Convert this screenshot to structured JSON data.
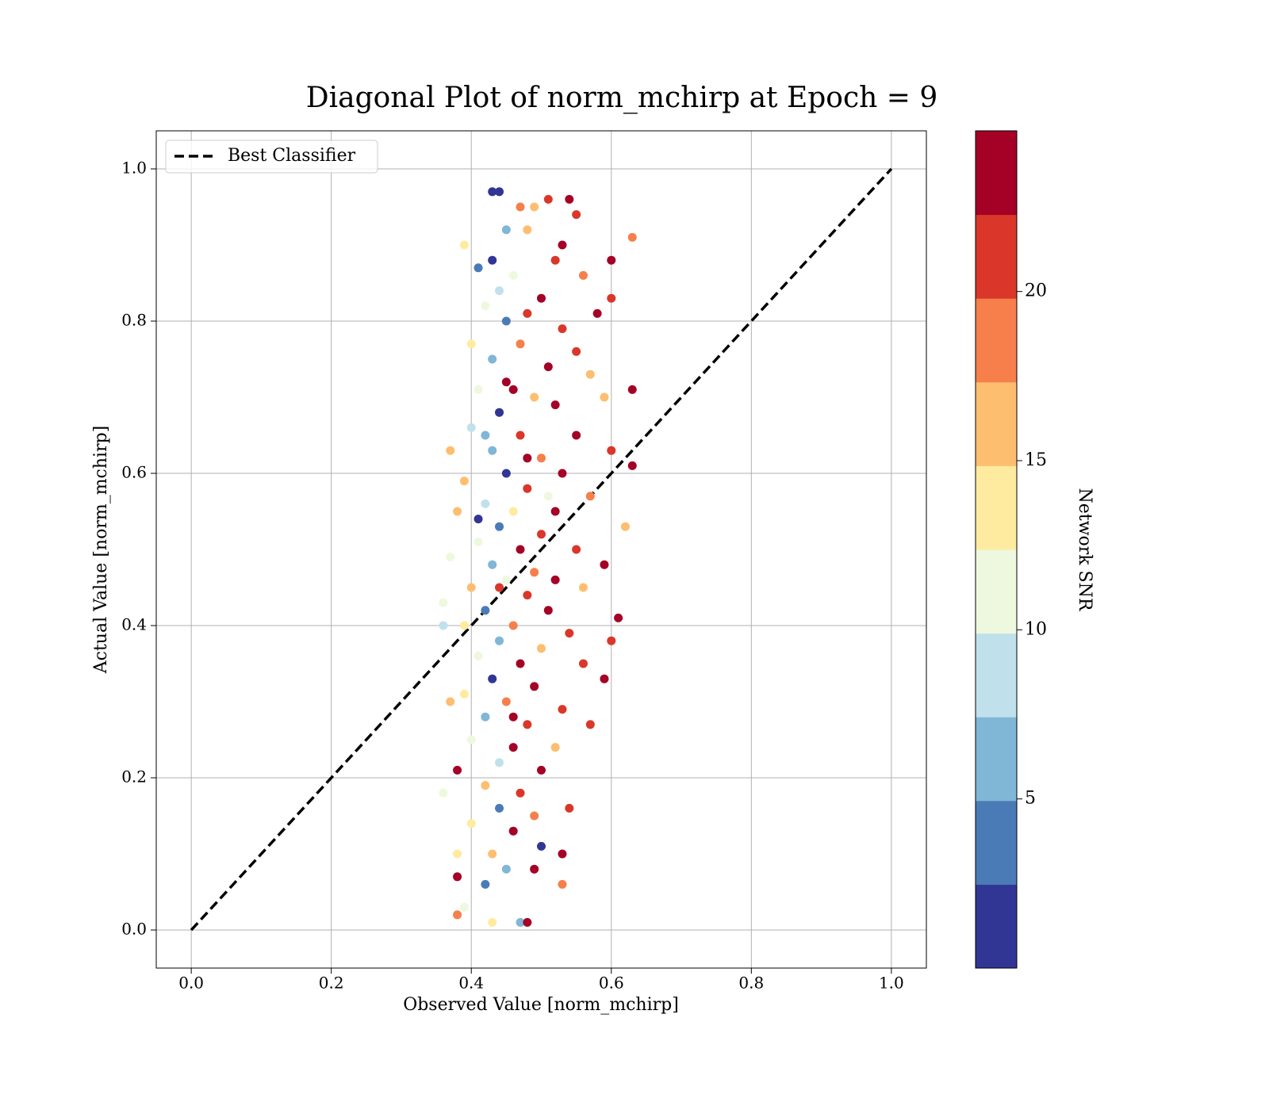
{
  "chart_data": {
    "type": "scatter",
    "title": "Diagonal Plot of norm_mchirp at Epoch = 9",
    "xlabel": "Observed Value [norm_mchirp]",
    "ylabel": "Actual Value [norm_mchirp]",
    "xlim": [
      -0.05,
      1.05
    ],
    "ylim": [
      -0.05,
      1.05
    ],
    "xticks": [
      {
        "value": 0,
        "label": "0.0"
      },
      0.2,
      0.4,
      0.6,
      0.8,
      {
        "value": 1,
        "label": "1.0"
      }
    ],
    "yticks": [
      {
        "value": 0,
        "label": "0.0"
      },
      0.2,
      0.4,
      0.6,
      0.8,
      {
        "value": 1,
        "label": "1.0"
      }
    ],
    "grid": true,
    "legend": "upper left",
    "colorbar": {
      "label": "Network SNR",
      "clim": [
        0,
        24.75
      ],
      "ticks": [
        5,
        10,
        15,
        20
      ],
      "colors": [
        "#313695",
        "#4a7bb7",
        "#80b6d6",
        "#c0e1ec",
        "#eef8de",
        "#feeb9f",
        "#fdbe70",
        "#f67f4b",
        "#da372a",
        "#a50026"
      ]
    },
    "series": [
      {
        "name": "Best Classifier",
        "type": "line",
        "color": "#000000",
        "dashed": true,
        "x": [
          0,
          1
        ],
        "y": [
          0,
          1
        ]
      },
      {
        "type": "scatter",
        "x": [
          0.43,
          0.44,
          0.51,
          0.54,
          0.47,
          0.49,
          0.55,
          0.45,
          0.48,
          0.63,
          0.39,
          0.53,
          0.43,
          0.52,
          0.6,
          0.41,
          0.46,
          0.56,
          0.44,
          0.5,
          0.6,
          0.42,
          0.48,
          0.58,
          0.45,
          0.53,
          0.4,
          0.47,
          0.55,
          0.43,
          0.51,
          0.57,
          0.41,
          0.46,
          0.63,
          0.49,
          0.44,
          0.52,
          0.59,
          0.4,
          0.47,
          0.55,
          0.37,
          0.43,
          0.5,
          0.6,
          0.45,
          0.53,
          0.63,
          0.39,
          0.48,
          0.57,
          0.42,
          0.46,
          0.52,
          0.38,
          0.44,
          0.5,
          0.62,
          0.41,
          0.47,
          0.55,
          0.37,
          0.43,
          0.49,
          0.59,
          0.45,
          0.52,
          0.4,
          0.48,
          0.56,
          0.36,
          0.42,
          0.51,
          0.61,
          0.39,
          0.46,
          0.54,
          0.36,
          0.44,
          0.5,
          0.6,
          0.41,
          0.47,
          0.56,
          0.43,
          0.49,
          0.59,
          0.39,
          0.45,
          0.53,
          0.37,
          0.42,
          0.48,
          0.57,
          0.4,
          0.46,
          0.52,
          0.44,
          0.5,
          0.38,
          0.42,
          0.47,
          0.36,
          0.44,
          0.49,
          0.54,
          0.4,
          0.46,
          0.5,
          0.43,
          0.53,
          0.38,
          0.45,
          0.49,
          0.38,
          0.42,
          0.53,
          0.39,
          0.38,
          0.43,
          0.47,
          0.48,
          0.41,
          0.45,
          0.48,
          0.44,
          0.46,
          0.51,
          0.42
        ],
        "y": [
          0.97,
          0.97,
          0.96,
          0.96,
          0.95,
          0.95,
          0.94,
          0.92,
          0.92,
          0.91,
          0.9,
          0.9,
          0.88,
          0.88,
          0.88,
          0.87,
          0.86,
          0.86,
          0.84,
          0.83,
          0.83,
          0.82,
          0.81,
          0.81,
          0.8,
          0.79,
          0.77,
          0.77,
          0.76,
          0.75,
          0.74,
          0.73,
          0.71,
          0.71,
          0.71,
          0.7,
          0.68,
          0.69,
          0.7,
          0.66,
          0.65,
          0.65,
          0.63,
          0.63,
          0.62,
          0.63,
          0.6,
          0.6,
          0.61,
          0.59,
          0.58,
          0.57,
          0.56,
          0.55,
          0.55,
          0.55,
          0.53,
          0.52,
          0.53,
          0.51,
          0.5,
          0.5,
          0.49,
          0.48,
          0.47,
          0.48,
          0.46,
          0.46,
          0.45,
          0.44,
          0.45,
          0.43,
          0.42,
          0.42,
          0.41,
          0.4,
          0.4,
          0.39,
          0.4,
          0.38,
          0.37,
          0.38,
          0.36,
          0.35,
          0.35,
          0.33,
          0.32,
          0.33,
          0.31,
          0.3,
          0.29,
          0.3,
          0.28,
          0.27,
          0.27,
          0.25,
          0.24,
          0.24,
          0.22,
          0.21,
          0.21,
          0.19,
          0.18,
          0.18,
          0.16,
          0.15,
          0.16,
          0.14,
          0.13,
          0.11,
          0.1,
          0.1,
          0.1,
          0.08,
          0.08,
          0.07,
          0.06,
          0.06,
          0.03,
          0.02,
          0.01,
          0.01,
          0.01,
          0.54,
          0.72,
          0.62,
          0.45,
          0.28,
          0.57,
          0.65
        ],
        "c": [
          2,
          2,
          22,
          23,
          19,
          17,
          20,
          7,
          16,
          18,
          14,
          23,
          1,
          22,
          23,
          3,
          10,
          19,
          9,
          24,
          20,
          12,
          21,
          24,
          4,
          22,
          13,
          18,
          21,
          6,
          23,
          15,
          11,
          24,
          24,
          16,
          2,
          23,
          17,
          8,
          22,
          24,
          16,
          5,
          18,
          21,
          1,
          24,
          23,
          17,
          21,
          19,
          9,
          14,
          23,
          15,
          3,
          20,
          16,
          12,
          24,
          22,
          11,
          6,
          18,
          24,
          10,
          23,
          15,
          21,
          17,
          12,
          4,
          24,
          23,
          13,
          19,
          22,
          8,
          7,
          16,
          20,
          11,
          24,
          21,
          2,
          23,
          24,
          14,
          18,
          22,
          16,
          5,
          21,
          20,
          12,
          24,
          17,
          9,
          23,
          24,
          15,
          22,
          11,
          3,
          18,
          20,
          13,
          24,
          1,
          16,
          23,
          14,
          6,
          24,
          24,
          4,
          19,
          12,
          18,
          14,
          5,
          24,
          2,
          23,
          24,
          22,
          23,
          11,
          7
        ]
      }
    ]
  }
}
